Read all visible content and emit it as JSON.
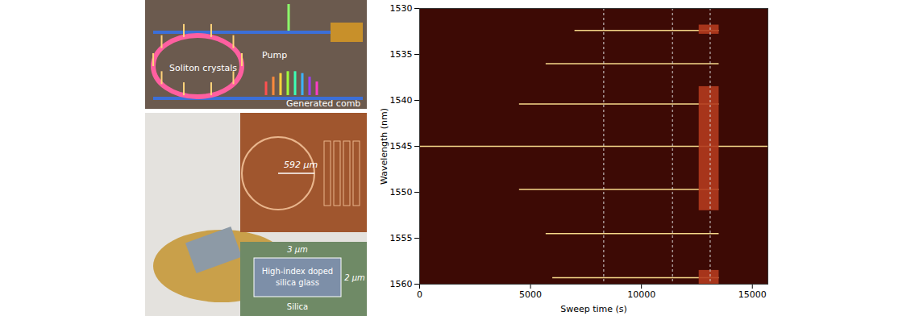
{
  "illustration": {
    "schematic_labels": [
      "Soliton crystals",
      "Pump",
      "Generated comb"
    ],
    "chip_dimension": "592 μm",
    "cross_section": {
      "width": "3 μm",
      "height": "2 μm",
      "core": "High-index doped silica glass",
      "cladding": "Silica"
    }
  },
  "chart_data": {
    "type": "spectrogram",
    "x_label": "Sweep time (s)",
    "y_label": "Wavelength (nm)",
    "xlim": [
      0,
      15700
    ],
    "xticks": [
      0,
      5000,
      10000,
      15000
    ],
    "ylim": [
      1530,
      1560
    ],
    "yticks": [
      1530,
      1535,
      1540,
      1545,
      1550,
      1555,
      1560
    ],
    "background": "#3d0a05",
    "comb_lines": [
      {
        "wavelength": 1545.0,
        "x": [
          0,
          15700
        ]
      },
      {
        "wavelength": 1540.4,
        "x": [
          4500,
          13500
        ]
      },
      {
        "wavelength": 1549.7,
        "x": [
          4500,
          13500
        ]
      },
      {
        "wavelength": 1536.0,
        "x": [
          5700,
          13500
        ]
      },
      {
        "wavelength": 1554.5,
        "x": [
          5700,
          13500
        ]
      },
      {
        "wavelength": 1532.4,
        "x": [
          7000,
          13500
        ]
      },
      {
        "wavelength": 1559.3,
        "x": [
          6000,
          13500
        ]
      }
    ],
    "line_color": "#f7d98a",
    "broadband_regions": [
      {
        "x": [
          12600,
          13500
        ],
        "y": [
          1538.5,
          1552.0
        ]
      },
      {
        "x": [
          12600,
          13500
        ],
        "y": [
          1531.8,
          1532.8
        ]
      },
      {
        "x": [
          12600,
          13500
        ],
        "y": [
          1558.5,
          1560.0
        ]
      }
    ],
    "region_color": "#b23a1e",
    "dashed_lines": [
      8300,
      11400,
      13100
    ]
  }
}
